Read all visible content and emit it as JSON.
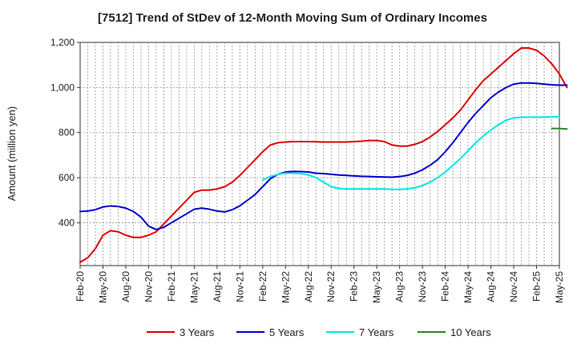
{
  "chart_data": {
    "type": "line",
    "title": "[7512]  Trend of StDev of 12-Month Moving Sum of Ordinary Incomes",
    "xlabel": "",
    "ylabel": "Amount (million yen)",
    "ylim": [
      210,
      1200
    ],
    "yticks": [
      400,
      600,
      800,
      "1,000",
      "1,200"
    ],
    "ytick_values": [
      400,
      600,
      800,
      1000,
      1200
    ],
    "x_tick_labels": [
      "Feb-20",
      "May-20",
      "Aug-20",
      "Nov-20",
      "Feb-21",
      "May-21",
      "Aug-21",
      "Nov-21",
      "Feb-22",
      "May-22",
      "Aug-22",
      "Nov-22",
      "Feb-23",
      "May-23",
      "Aug-23",
      "Nov-23",
      "Feb-24",
      "May-24",
      "Aug-24",
      "Nov-24",
      "Feb-25",
      "May-25"
    ],
    "x_start": "Feb-20",
    "x_step": "1 month",
    "grid": true,
    "legend_position": "bottom",
    "series": [
      {
        "name": "3 Years",
        "color": "#e00000",
        "start_index": 0,
        "values": [
          225,
          245,
          285,
          345,
          365,
          360,
          345,
          335,
          335,
          345,
          360,
          395,
          430,
          465,
          500,
          535,
          545,
          545,
          550,
          560,
          580,
          610,
          645,
          680,
          715,
          745,
          755,
          758,
          760,
          760,
          760,
          759,
          758,
          758,
          758,
          758,
          760,
          762,
          765,
          765,
          760,
          745,
          740,
          740,
          748,
          760,
          780,
          805,
          835,
          865,
          900,
          945,
          990,
          1030,
          1060,
          1090,
          1120,
          1150,
          1175,
          1175,
          1165,
          1140,
          1105,
          1060,
          1000
        ]
      },
      {
        "name": "5 Years",
        "color": "#0000cc",
        "start_index": 0,
        "values": [
          450,
          452,
          458,
          470,
          475,
          472,
          465,
          450,
          425,
          385,
          370,
          380,
          400,
          420,
          440,
          460,
          465,
          460,
          452,
          448,
          458,
          475,
          500,
          525,
          560,
          595,
          615,
          625,
          628,
          627,
          625,
          620,
          618,
          615,
          612,
          610,
          608,
          606,
          605,
          604,
          603,
          602,
          605,
          610,
          620,
          635,
          655,
          680,
          715,
          755,
          800,
          845,
          885,
          920,
          955,
          980,
          1000,
          1015,
          1020,
          1020,
          1018,
          1015,
          1012,
          1010,
          1010
        ]
      },
      {
        "name": "7 Years",
        "color": "#00e6e6",
        "start_index": 24,
        "values": [
          590,
          605,
          615,
          620,
          620,
          618,
          612,
          600,
          580,
          560,
          552,
          550,
          550,
          550,
          550,
          550,
          550,
          548,
          548,
          550,
          555,
          565,
          580,
          600,
          625,
          655,
          685,
          720,
          755,
          785,
          812,
          835,
          855,
          865,
          868,
          868,
          868,
          868,
          870,
          870
        ]
      },
      {
        "name": "10 Years",
        "color": "#228b22",
        "start_index": 62,
        "values": [
          818,
          818,
          816
        ]
      }
    ]
  }
}
